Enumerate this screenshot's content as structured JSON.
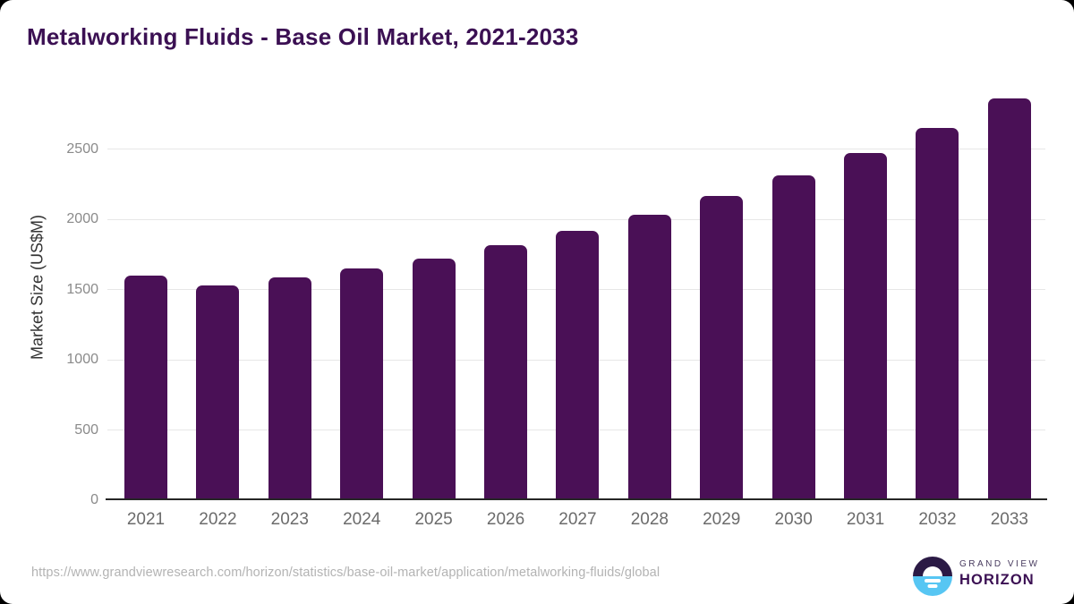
{
  "page_title": "Metalworking Fluids - Base Oil Market, 2021-2033",
  "chart_data": {
    "type": "bar",
    "title": "Metalworking Fluids - Base Oil Market, 2021-2033",
    "categories": [
      "2021",
      "2022",
      "2023",
      "2024",
      "2025",
      "2026",
      "2027",
      "2028",
      "2029",
      "2030",
      "2031",
      "2032",
      "2033"
    ],
    "values": [
      1600,
      1530,
      1585,
      1650,
      1720,
      1815,
      1915,
      2035,
      2165,
      2315,
      2470,
      2650,
      2860
    ],
    "xlabel": "",
    "ylabel": "Market Size (US$M)",
    "ylim": [
      0,
      2900
    ],
    "yticks": [
      0,
      500,
      1000,
      1500,
      2000,
      2500
    ],
    "grid": "horizontal gridlines at each y tick",
    "legend": "none",
    "bar_color": "#4a1056"
  },
  "footer": {
    "source_url": "https://www.grandviewresearch.com/horizon/statistics/base-oil-market/application/metalworking-fluids/global",
    "logo": {
      "line1": "GRAND VIEW",
      "line2": "HORIZON"
    }
  },
  "colors": {
    "title": "#3b1053",
    "bar": "#4a1056",
    "axis_line": "#262626",
    "gridline": "#e7e7e7",
    "tick_label": "#8a8a8a",
    "x_label": "#6b6b6b",
    "axis_title": "#333333",
    "url_text": "#b3b3b3",
    "logo_top": "#2b1a45",
    "logo_bottom": "#57c6f3",
    "card_bg": "#ffffff",
    "outer_bg": "#000000"
  }
}
